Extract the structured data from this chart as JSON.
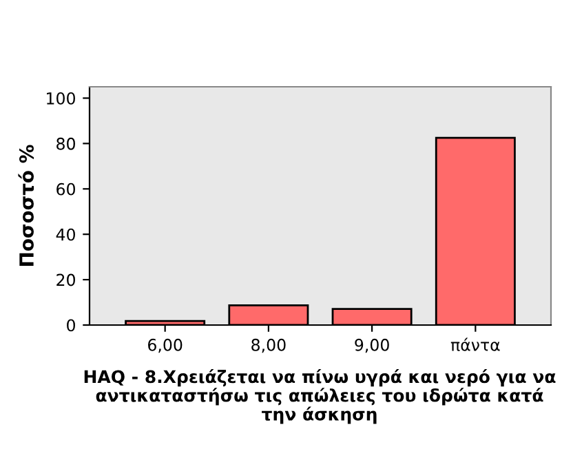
{
  "chart_data": {
    "type": "bar",
    "xlabel": "HAQ - 8.Χρειάζεται να πίνω υγρά και νερό για να αντικαταστήσω τις απώλειες του ιδρώτα κατά την άσκηση",
    "ylabel": "Ποσοστό %",
    "categories": [
      "6,00",
      "8,00",
      "9,00",
      "πάντα"
    ],
    "values": [
      1.8,
      8.7,
      7.1,
      82.5
    ],
    "color": "#ff6a6a",
    "ylim": [
      0,
      105
    ],
    "yticks": [
      0,
      20,
      40,
      60,
      80,
      100
    ],
    "grid": false
  }
}
